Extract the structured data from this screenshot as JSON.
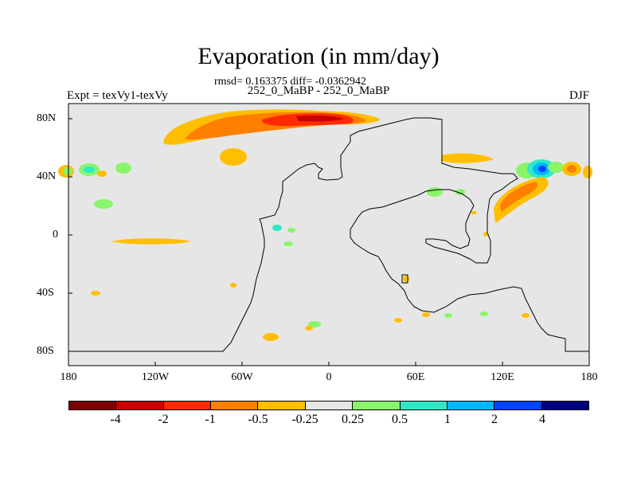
{
  "title": "Evaporation (in mm/day)",
  "stats": "rmsd= 0.163375 diff= -0.0362942",
  "experiment": "Expt = texVy1-texVy",
  "case_label": "252_0_MaBP - 252_0_MaBP",
  "season": "DJF",
  "x_ticks": [
    "180",
    "120W",
    "60W",
    "0",
    "60E",
    "120E",
    "180"
  ],
  "y_ticks": [
    "80N",
    "40N",
    "0",
    "40S",
    "80S"
  ],
  "colorbar": {
    "colors": [
      "#7b0000",
      "#c80000",
      "#ff2a00",
      "#ff7f00",
      "#ffbf00",
      "#e6e6e6",
      "#88f56a",
      "#2fe8c8",
      "#00b8ff",
      "#0044ff",
      "#00007f"
    ],
    "labels": [
      "-4",
      "-2",
      "-1",
      "-0.5",
      "-0.25",
      "0.25",
      "0.5",
      "1",
      "2",
      "4"
    ]
  },
  "colors": {
    "ocean": "#e6e6e6",
    "land_outline": "#000000"
  }
}
